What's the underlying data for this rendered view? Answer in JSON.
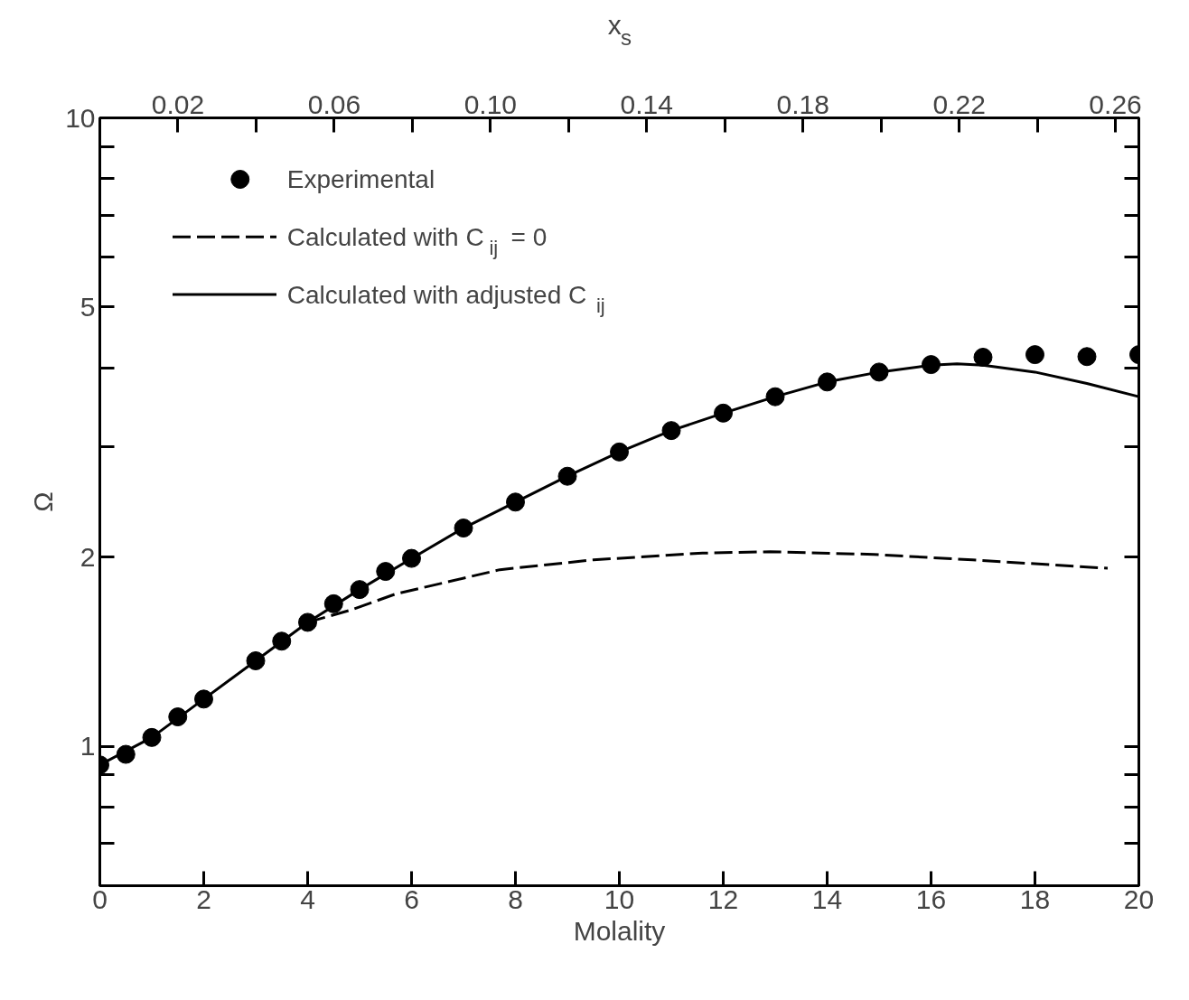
{
  "chart_data": {
    "type": "scatter",
    "xlabel": "Molality",
    "ylabel": "Ω",
    "x2label": "x$_{s}$",
    "xlim": [
      0,
      20
    ],
    "xticks": [
      0,
      2,
      4,
      6,
      8,
      10,
      12,
      14,
      16,
      18,
      20
    ],
    "x2lim": [
      0,
      0.266
    ],
    "x2ticks": [
      0.02,
      {
        "value": 0.04,
        "label": null
      },
      0.06,
      {
        "value": 0.08,
        "label": null
      },
      {
        "value": 0.1,
        "label": "0.10"
      },
      {
        "value": 0.12,
        "label": null
      },
      0.14,
      {
        "value": 0.16,
        "label": null
      },
      0.18,
      {
        "value": 0.2,
        "label": null
      },
      0.22,
      {
        "value": 0.24,
        "label": null
      },
      0.26
    ],
    "ylim": [
      0.6,
      10
    ],
    "log": true,
    "grid": false,
    "legend": "top left",
    "yticks": [
      {
        "value": 0.7,
        "label": null
      },
      {
        "value": 0.8,
        "label": null
      },
      {
        "value": 0.9,
        "label": null
      },
      1,
      2,
      {
        "value": 3,
        "label": null
      },
      {
        "value": 4,
        "label": null
      },
      5,
      {
        "value": 6,
        "label": null
      },
      {
        "value": 7,
        "label": null
      },
      {
        "value": 8,
        "label": null
      },
      {
        "value": 9,
        "label": null
      },
      10
    ],
    "series": [
      {
        "name": "Experimental",
        "marker": "circle",
        "color": "#000000",
        "x": [
          0,
          0.5,
          1,
          1.5,
          2,
          3,
          3.5,
          4,
          4.5,
          5,
          5.5,
          6,
          7,
          8,
          9,
          10,
          11,
          12,
          13,
          14,
          15,
          16,
          17,
          18,
          19,
          20
        ],
        "values": [
          0.934,
          0.971,
          1.033,
          1.114,
          1.189,
          1.368,
          1.47,
          1.575,
          1.686,
          1.776,
          1.898,
          1.991,
          2.225,
          2.447,
          2.69,
          2.94,
          3.18,
          3.39,
          3.6,
          3.8,
          3.94,
          4.05,
          4.16,
          4.2,
          4.17,
          4.2
        ]
      },
      {
        "name": "Calculated with C$_{ij}$ = 0",
        "type": "line",
        "line_style": "dashed",
        "color": "#000000",
        "x": [
          4,
          4.85,
          5.7,
          7.7,
          9.5,
          11.6,
          12.9,
          14.9,
          16.8,
          19.4
        ],
        "values": [
          1.575,
          1.65,
          1.748,
          1.91,
          1.98,
          2.03,
          2.04,
          2.02,
          1.98,
          1.92
        ]
      },
      {
        "name": "Calculated with adjusted C$_{ij}$",
        "type": "line",
        "line_style": "solid",
        "color": "#000000",
        "x": [
          0,
          1,
          2,
          3,
          4,
          5,
          6,
          7,
          8,
          9,
          10,
          11,
          12,
          13,
          14,
          15,
          16,
          16.5,
          17,
          18,
          19,
          20
        ],
        "values": [
          0.934,
          1.033,
          1.189,
          1.368,
          1.575,
          1.776,
          1.99,
          2.225,
          2.447,
          2.69,
          2.94,
          3.18,
          3.39,
          3.6,
          3.8,
          3.94,
          4.04,
          4.06,
          4.04,
          3.94,
          3.78,
          3.6
        ]
      }
    ]
  }
}
